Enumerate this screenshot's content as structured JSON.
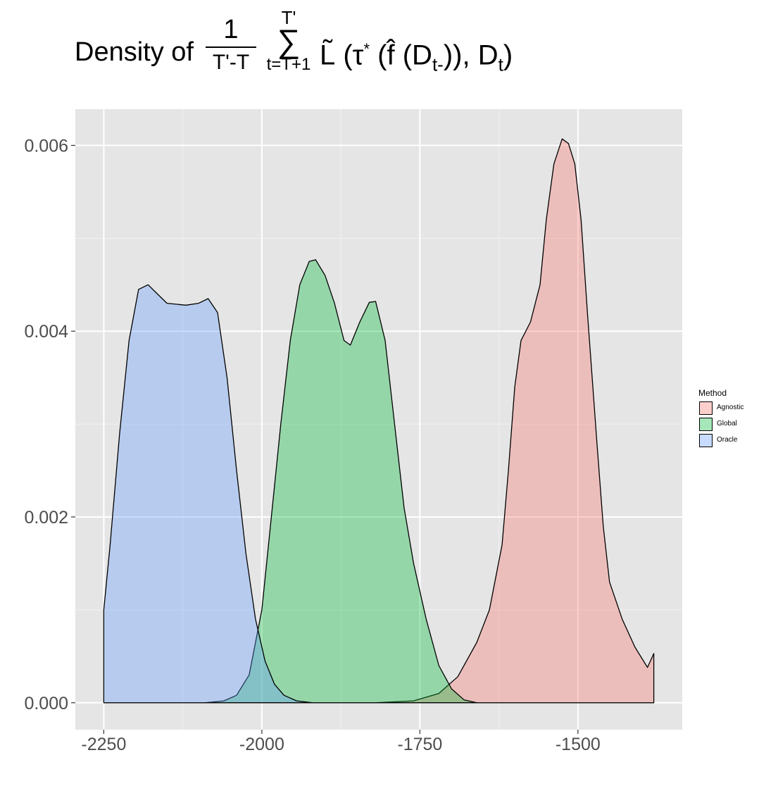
{
  "title": {
    "lead": "Density of ",
    "frac_num": "1",
    "frac_den": "T'-T",
    "sum_upper": "T'",
    "sum_sigma": "∑",
    "sum_lower": "t=T+1",
    "tilde_L": "L̃",
    "open": " (τ",
    "star": "*",
    "mid": " (",
    "f_hat": "f̂",
    "arg": " (D",
    "sub1": "t-",
    "close1": ")), D",
    "sub2": "t",
    "close2": ")"
  },
  "chart_data": {
    "type": "area",
    "title": "Density of 1/(T'-T) Σ_{t=T+1}^{T'} L̃(τ*(f̂(D_t-)), D_t)",
    "xlabel": "",
    "ylabel": "",
    "xlim": [
      -2295,
      -1335
    ],
    "ylim": [
      -0.00029,
      0.00639
    ],
    "x_ticks": [
      -2250,
      -2000,
      -1750,
      -1500
    ],
    "x_tick_labels": [
      "-2250",
      "-2000",
      "-1750",
      "-1500"
    ],
    "y_ticks": [
      0.0,
      0.002,
      0.004,
      0.006
    ],
    "y_tick_labels": [
      "0.000",
      "0.002",
      "0.004",
      "0.006"
    ],
    "grid": true,
    "legend": {
      "title": "Method",
      "position": "right"
    },
    "series": [
      {
        "name": "Agnostic",
        "color": "#F8766D",
        "points": [
          [
            -1820,
            0
          ],
          [
            -1760,
            2e-05
          ],
          [
            -1720,
            0.0001
          ],
          [
            -1690,
            0.00028
          ],
          [
            -1660,
            0.00065
          ],
          [
            -1640,
            0.001
          ],
          [
            -1620,
            0.0017
          ],
          [
            -1610,
            0.0025
          ],
          [
            -1600,
            0.0034
          ],
          [
            -1590,
            0.0039
          ],
          [
            -1575,
            0.0041
          ],
          [
            -1560,
            0.0045
          ],
          [
            -1550,
            0.0052
          ],
          [
            -1538,
            0.0058
          ],
          [
            -1525,
            0.00607
          ],
          [
            -1515,
            0.00602
          ],
          [
            -1505,
            0.0058
          ],
          [
            -1495,
            0.0052
          ],
          [
            -1485,
            0.0042
          ],
          [
            -1470,
            0.0028
          ],
          [
            -1460,
            0.0019
          ],
          [
            -1450,
            0.0013
          ],
          [
            -1430,
            0.0009
          ],
          [
            -1410,
            0.0006
          ],
          [
            -1390,
            0.00038
          ],
          [
            -1380,
            0.00053
          ]
        ]
      },
      {
        "name": "Global",
        "color": "#00BA38",
        "points": [
          [
            -2090,
            0
          ],
          [
            -2060,
            2e-05
          ],
          [
            -2040,
            8e-05
          ],
          [
            -2020,
            0.0003
          ],
          [
            -2000,
            0.001
          ],
          [
            -1985,
            0.002
          ],
          [
            -1970,
            0.003
          ],
          [
            -1955,
            0.0039
          ],
          [
            -1940,
            0.0045
          ],
          [
            -1925,
            0.00475
          ],
          [
            -1915,
            0.00477
          ],
          [
            -1900,
            0.0046
          ],
          [
            -1885,
            0.0043
          ],
          [
            -1870,
            0.0039
          ],
          [
            -1860,
            0.00385
          ],
          [
            -1845,
            0.0041
          ],
          [
            -1830,
            0.00431
          ],
          [
            -1820,
            0.00432
          ],
          [
            -1805,
            0.0039
          ],
          [
            -1790,
            0.003
          ],
          [
            -1775,
            0.0021
          ],
          [
            -1760,
            0.0015
          ],
          [
            -1740,
            0.0009
          ],
          [
            -1720,
            0.0004
          ],
          [
            -1700,
            0.00015
          ],
          [
            -1680,
            3e-05
          ],
          [
            -1660,
            0
          ]
        ]
      },
      {
        "name": "Oracle",
        "color": "#619CFF",
        "points": [
          [
            -2250,
            0
          ],
          [
            -2250,
            0.001
          ],
          [
            -2240,
            0.0017
          ],
          [
            -2225,
            0.0029
          ],
          [
            -2210,
            0.0039
          ],
          [
            -2195,
            0.00445
          ],
          [
            -2180,
            0.0045
          ],
          [
            -2165,
            0.0044
          ],
          [
            -2150,
            0.0043
          ],
          [
            -2120,
            0.00428
          ],
          [
            -2100,
            0.0043
          ],
          [
            -2085,
            0.00435
          ],
          [
            -2070,
            0.0042
          ],
          [
            -2055,
            0.0035
          ],
          [
            -2040,
            0.0025
          ],
          [
            -2025,
            0.0016
          ],
          [
            -2010,
            0.0009
          ],
          [
            -1995,
            0.00045
          ],
          [
            -1980,
            0.0002
          ],
          [
            -1965,
            8e-05
          ],
          [
            -1945,
            2e-05
          ],
          [
            -1920,
            0
          ]
        ]
      }
    ]
  }
}
